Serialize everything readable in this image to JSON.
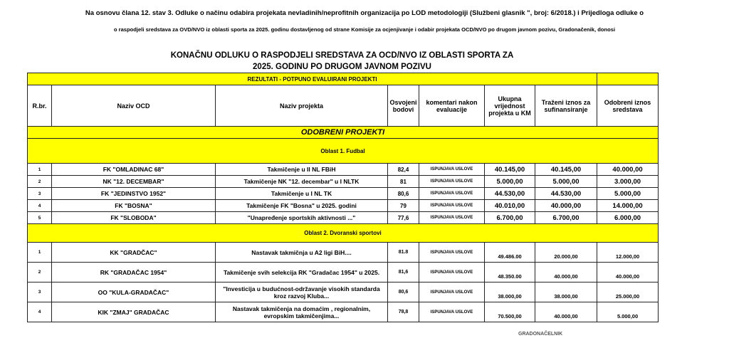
{
  "intro": [
    "Na osnovu člana 12. stav 3. Odluke o načinu odabira projekata nevladinih/neprofitnih organizacija po LOD metodologiji  (Službeni glasnik \", broj: 6/2018.) i Prijedloga odluke o",
    "o raspodjeli sredstava za OVD/NVO iz oblasti sporta za  2025. godinu dostavljenog od strane Komisije za ocjenjivanje i odabir projekata OCD/NVO po drugom  javnom pozivu, Gradonačenik, donosi"
  ],
  "title": [
    "KONAČNU ODLUKU O RASPODJELI SREDSTAVA  ZA  OCD/NVO IZ OBLASTI SPORTA ZA",
    "2025. GODINU PO DRUGOM JAVNOM  POZIVU"
  ],
  "table": {
    "banner": "REZULTATI - POTPUNO EVALUIRANI PROJEKTI",
    "headers": [
      "R.br.",
      "Naziv OCD",
      "Naziv projekta",
      "Osvojeni bodovi",
      "komentari nakon evaluacije",
      "Ukupna vrijednost projekta u KM",
      "Traženi iznos za sufinansiranje",
      "Odobreni  iznos sredstava"
    ],
    "approved_label": "ODOBRENI PROJEKTI",
    "sections": [
      {
        "label": "Oblast 1. Fudbal",
        "rows": [
          [
            "1",
            "FK \"OMLADINAC 68\"",
            "Takmičenje u II NL FBiH",
            "82,4",
            "ISPUNJAVA USLOVE",
            "40.145,00",
            "40.145,00",
            "40.000,00"
          ],
          [
            "2",
            "NK \"12. DECEMBAR\"",
            "Takmičenje NK \"12. decembar\" u I NLTK",
            "81",
            "ISPUNJAVA USLOVE",
            "5.000,00",
            "5.000,00",
            "3.000,00"
          ],
          [
            "3",
            "FK \"JEDINSTVO 1952\"",
            "Takmičenje u I NL TK",
            "80,6",
            "ISPUNJAVA USLOVE",
            "44.530,00",
            "44.530,00",
            "5.000,00"
          ],
          [
            "4",
            "FK \"BOSNA\"",
            "Takmičenje FK \"Bosna\" u 2025. godini",
            "79",
            "ISPUNJAVA USLOVE",
            "40.010,00",
            "40.000,00",
            "14.000,00"
          ],
          [
            "5",
            "FK \"SLOBODA\"",
            "\"Unapređenje sportskih aktivnosti ...\"",
            "77,6",
            "ISPUNJAVA USLOVE",
            "6.700,00",
            "6.700,00",
            "6.000,00"
          ]
        ]
      },
      {
        "label": "Oblast 2. Dvoranski sportovi",
        "rows": [
          [
            "1",
            "KK \"GRADČAC\"",
            "Nastavak  takmičnja u  A2 ligi BiH....",
            "81.8",
            "ISPUNJAVA USLOVE",
            "49.486.00",
            "20.000,00",
            "12.000,00"
          ],
          [
            "2",
            "RK \"GRADAČAC 1954\"",
            "Takmičenje svih selekcija RK \"Gradačac 1954\" u 2025.",
            "81,6",
            "ISPUNJAVA USLOVE",
            "48.350.00",
            "40.000,00",
            "40.000,00"
          ],
          [
            "3",
            "OO \"KULA-GRADAČAC\"",
            "\"Investicija u budućnost-održavanje visokih standarda kroz  razvoj Kluba...",
            "80,6",
            "ISPUNJAVA USLOVE",
            "38.000,00",
            "38.000,00",
            "25.000,00"
          ],
          [
            "4",
            "KIK \"ZMAJ\" GRADAČAC",
            "Nastavak takmičenja na domaćim , regionalnim, evropskim  takmičenjima...",
            "78,8",
            "ISPUNJAVA USLOVE",
            "70.500,00",
            "40.000,00",
            "5.000,00"
          ]
        ]
      }
    ]
  },
  "footer": "GRADONAČELNIK"
}
